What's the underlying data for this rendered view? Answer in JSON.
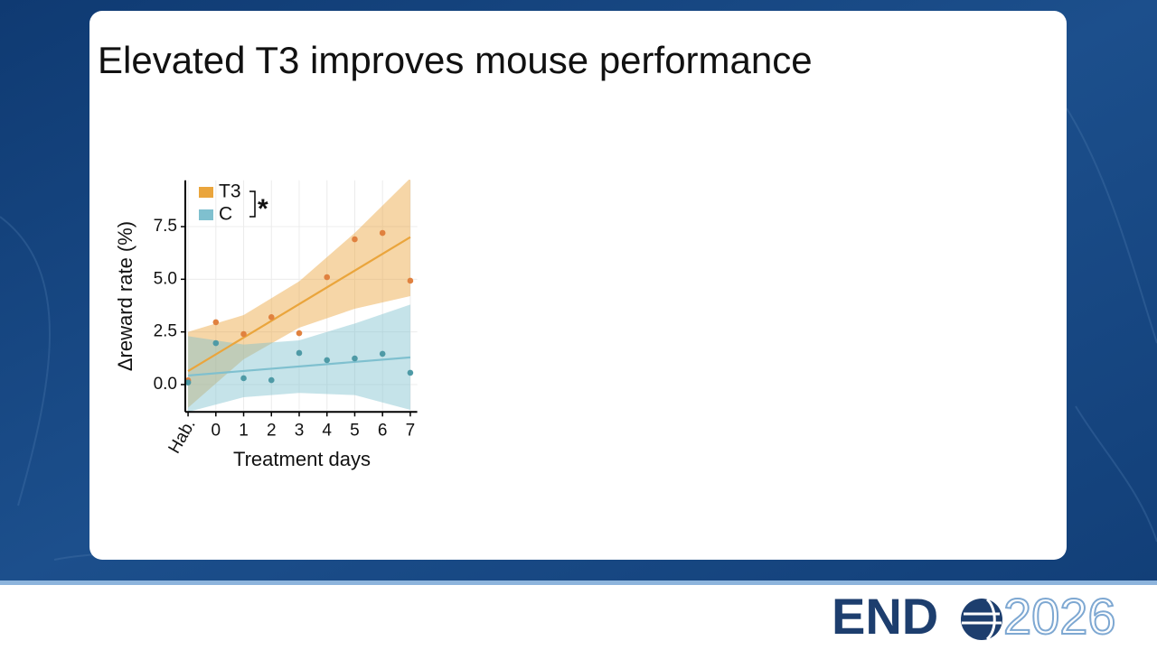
{
  "slide": {
    "title": "Elevated T3 improves mouse performance",
    "logo": {
      "word": "END",
      "year": "2026"
    }
  },
  "chart_data": {
    "type": "scatter",
    "xlabel": "Treatment days",
    "ylabel": "Δreward rate (%)",
    "x": [
      -1,
      0,
      1,
      2,
      3,
      4,
      5,
      6,
      7
    ],
    "xlim": [
      -1.1,
      7.25
    ],
    "xticks": [
      {
        "value": -1,
        "label": "Hab."
      },
      0,
      1,
      2,
      3,
      4,
      5,
      6,
      7
    ],
    "ylim": [
      -1.3,
      9.7
    ],
    "yticks": [
      {
        "value": 0,
        "label": "0.0"
      },
      2.5,
      {
        "value": 5,
        "label": "5.0"
      },
      7.5
    ],
    "grid": true,
    "legend": "top-left",
    "annotation": "*",
    "fit_x": [
      -1,
      7
    ],
    "ci_x": [
      -1,
      1,
      3,
      5,
      7
    ],
    "series": [
      {
        "name": "T3",
        "color": "#eaa53c",
        "marker_color": "#e0813f",
        "values": [
          0.2,
          2.96,
          2.4,
          3.2,
          2.44,
          5.1,
          6.9,
          7.2,
          4.93
        ],
        "fit": [
          0.64,
          7.0
        ],
        "ci_lower": [
          -1.1,
          1.2,
          2.7,
          3.6,
          4.2
        ],
        "ci_upper": [
          2.5,
          3.3,
          4.9,
          7.2,
          9.8
        ]
      },
      {
        "name": "C",
        "color": "#7fc0cf",
        "marker_color": "#4e9aa6",
        "values": [
          0.1,
          1.97,
          0.3,
          0.21,
          1.5,
          1.16,
          1.24,
          1.46,
          0.56
        ],
        "fit": [
          0.43,
          1.29
        ],
        "ci_lower": [
          -1.3,
          -0.6,
          -0.4,
          -0.5,
          -1.2
        ],
        "ci_upper": [
          2.3,
          1.9,
          2.1,
          2.9,
          3.8
        ]
      }
    ]
  }
}
